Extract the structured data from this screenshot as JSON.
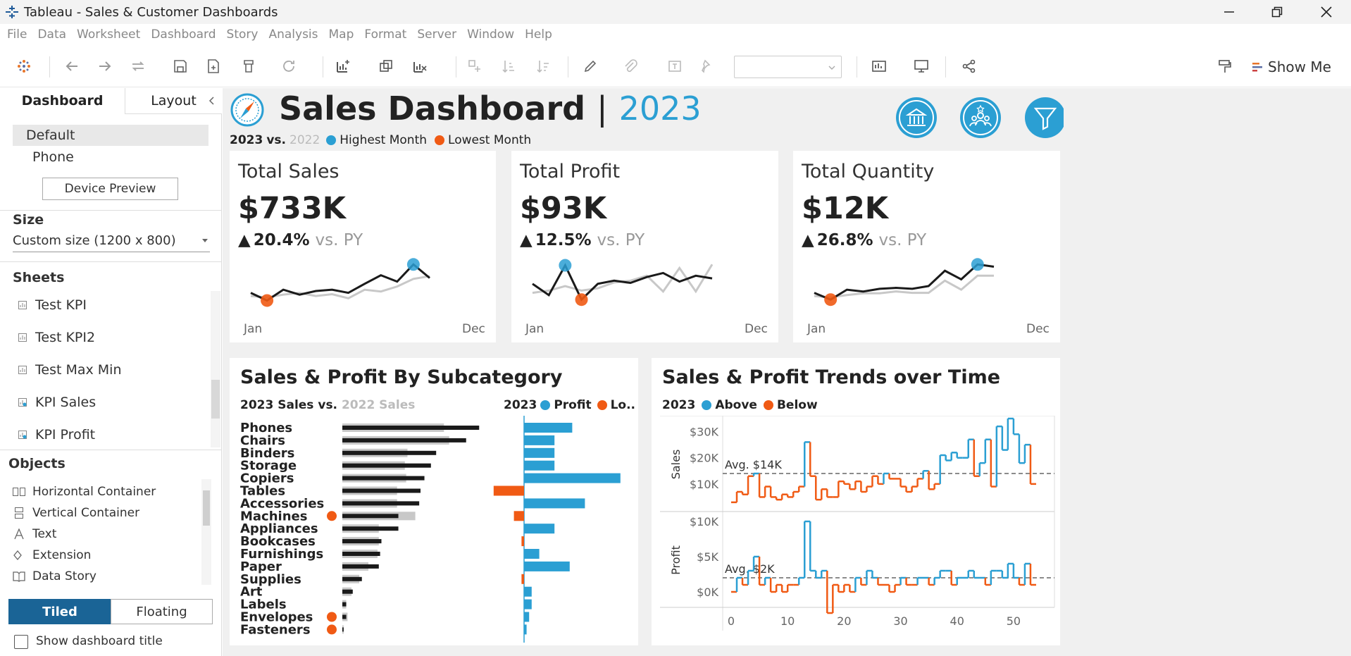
{
  "window": {
    "title": "Tableau - Sales & Customer Dashboards"
  },
  "menu": [
    "File",
    "Data",
    "Worksheet",
    "Dashboard",
    "Story",
    "Analysis",
    "Map",
    "Format",
    "Server",
    "Window",
    "Help"
  ],
  "toolbar": {
    "show_me": "Show Me"
  },
  "left_pane": {
    "tabs": [
      "Dashboard",
      "Layout"
    ],
    "devices": [
      "Default",
      "Phone"
    ],
    "device_preview": "Device Preview",
    "size_title": "Size",
    "size_value": "Custom size (1200 x 800)",
    "sheets_title": "Sheets",
    "sheets": [
      "Test KPI",
      "Test KPI2",
      "Test Max Min",
      "KPI Sales",
      "KPI Profit"
    ],
    "objects_title": "Objects",
    "objects": [
      "Horizontal Container",
      "Vertical Container",
      "Text",
      "Extension",
      "Data Story"
    ],
    "tiled": "Tiled",
    "floating": "Floating",
    "show_title": "Show dashboard title"
  },
  "dashboard": {
    "title": "Sales Dashboard",
    "sep": "|",
    "year": "2023",
    "legend": {
      "current": "2023",
      "vs": "vs.",
      "previous": "2022",
      "highest": "Highest Month",
      "lowest": "Lowest Month"
    },
    "colors": {
      "blue": "#2b9fd3",
      "orange": "#f05a14",
      "dark": "#1a1a1a",
      "gray": "#c8c8c8"
    },
    "kpis": [
      {
        "title": "Total Sales",
        "value": "$733K",
        "change": "20.4%",
        "vs": "vs. PY",
        "start": "Jan",
        "end": "Dec",
        "arrow": "▲"
      },
      {
        "title": "Total Profit",
        "value": "$93K",
        "change": "12.5%",
        "vs": "vs. PY",
        "start": "Jan",
        "end": "Dec",
        "arrow": "▲"
      },
      {
        "title": "Total Quantity",
        "value": "$12K",
        "change": "26.8%",
        "vs": "vs. PY",
        "start": "Jan",
        "end": "Dec",
        "arrow": "▲"
      }
    ],
    "subcat": {
      "title": "Sales & Profit By Subcategory",
      "sales_legend_cur": "2023 Sales",
      "sales_legend_vs": "vs.",
      "sales_legend_prev": "2022 Sales",
      "profit_legend_year": "2023",
      "profit_legend_profit": "Profit",
      "profit_legend_loss": "Lo.."
    },
    "trends": {
      "title": "Sales & Profit Trends over Time",
      "legend_year": "2023",
      "above": "Above",
      "below": "Below",
      "sales_axis": "Sales",
      "profit_axis": "Profit",
      "sales_avg": "Avg. $14K",
      "profit_avg": "Avg. $2K",
      "sales_ticks": [
        "$30K",
        "$20K",
        "$10K"
      ],
      "profit_ticks": [
        "$10K",
        "$5K",
        "$0K"
      ],
      "x_ticks": [
        "0",
        "10",
        "20",
        "30",
        "40",
        "50"
      ]
    }
  },
  "chart_data": [
    {
      "type": "line",
      "name": "kpi-sales-spark",
      "series": [
        {
          "values": [
            0.35,
            0.18,
            0.42,
            0.31,
            0.39,
            0.42,
            0.35,
            0.55,
            0.74,
            0.6,
            0.98,
            0.68
          ]
        },
        {
          "values": [
            0.28,
            0.25,
            0.31,
            0.35,
            0.28,
            0.32,
            0.23,
            0.42,
            0.38,
            0.49,
            0.66,
            0.72
          ]
        }
      ],
      "max_index": 10,
      "min_index": 1
    },
    {
      "type": "line",
      "name": "kpi-profit-spark",
      "series": [
        {
          "values": [
            0.55,
            0.3,
            0.96,
            0.2,
            0.55,
            0.62,
            0.57,
            0.7,
            0.79,
            0.6,
            0.73,
            0.67
          ]
        },
        {
          "values": [
            0.35,
            0.4,
            0.5,
            0.4,
            0.45,
            0.58,
            0.62,
            0.73,
            0.38,
            0.9,
            0.38,
            0.98
          ]
        }
      ],
      "max_index": 2,
      "min_index": 3
    },
    {
      "type": "line",
      "name": "kpi-quantity-spark",
      "series": [
        {
          "values": [
            0.35,
            0.2,
            0.42,
            0.38,
            0.44,
            0.46,
            0.44,
            0.5,
            0.84,
            0.65,
            0.98,
            0.93
          ]
        },
        {
          "values": [
            0.28,
            0.25,
            0.3,
            0.34,
            0.34,
            0.38,
            0.35,
            0.35,
            0.62,
            0.42,
            0.73,
            0.73
          ]
        }
      ],
      "max_index": 10,
      "min_index": 1
    },
    {
      "type": "bar",
      "name": "subcategory",
      "categories": [
        "Phones",
        "Chairs",
        "Binders",
        "Storage",
        "Copiers",
        "Tables",
        "Accessories",
        "Machines",
        "Appliances",
        "Bookcases",
        "Furnishings",
        "Paper",
        "Supplies",
        "Art",
        "Labels",
        "Envelopes",
        "Fasteners"
      ],
      "series": [
        {
          "name": "2023 Sales",
          "values": [
            105,
            95,
            72,
            68,
            63,
            60,
            59,
            43,
            43,
            30,
            29,
            28,
            15,
            8,
            3,
            3,
            1
          ]
        },
        {
          "name": "2022 Sales",
          "values": [
            78,
            82,
            50,
            48,
            49,
            42,
            42,
            56,
            28,
            28,
            27,
            20,
            13,
            7,
            3,
            4,
            1
          ]
        },
        {
          "name": "Profit",
          "values": [
            19,
            12,
            12,
            12,
            38,
            -12,
            24,
            -4,
            12,
            -1,
            6,
            18,
            -1,
            3,
            3,
            2,
            1
          ]
        }
      ],
      "loss_markers": [
        "Machines",
        "Envelopes",
        "Fasteners"
      ]
    },
    {
      "type": "line",
      "name": "sales-over-time",
      "x_range": [
        0,
        56
      ],
      "ylim": [
        0,
        35
      ],
      "avg": 14,
      "values": [
        3,
        7,
        6,
        13,
        14,
        5,
        9,
        5,
        4,
        6,
        5,
        7,
        9,
        26,
        13,
        4,
        8,
        5,
        5,
        11,
        10,
        8,
        11,
        7,
        9,
        13,
        10,
        14,
        12,
        12,
        9,
        7,
        9,
        12,
        15,
        8,
        10,
        21,
        19,
        22,
        20,
        20,
        27,
        13,
        18,
        27,
        9,
        32,
        23,
        35,
        29,
        18,
        25,
        10
      ]
    },
    {
      "type": "line",
      "name": "profit-over-time",
      "x_range": [
        0,
        56
      ],
      "ylim": [
        -2,
        11
      ],
      "avg": 2,
      "values": [
        0,
        2,
        1,
        3,
        5,
        1,
        2,
        0,
        1,
        0,
        1,
        1,
        2,
        10,
        3,
        2,
        3,
        -3,
        1,
        0,
        1,
        0,
        2,
        1,
        3,
        2,
        1,
        1,
        0,
        1,
        2,
        1,
        1,
        2,
        2,
        1,
        2,
        3,
        3,
        1,
        2,
        2,
        3,
        2,
        2,
        1,
        3,
        3,
        2,
        4,
        2,
        1,
        4,
        1
      ]
    }
  ]
}
